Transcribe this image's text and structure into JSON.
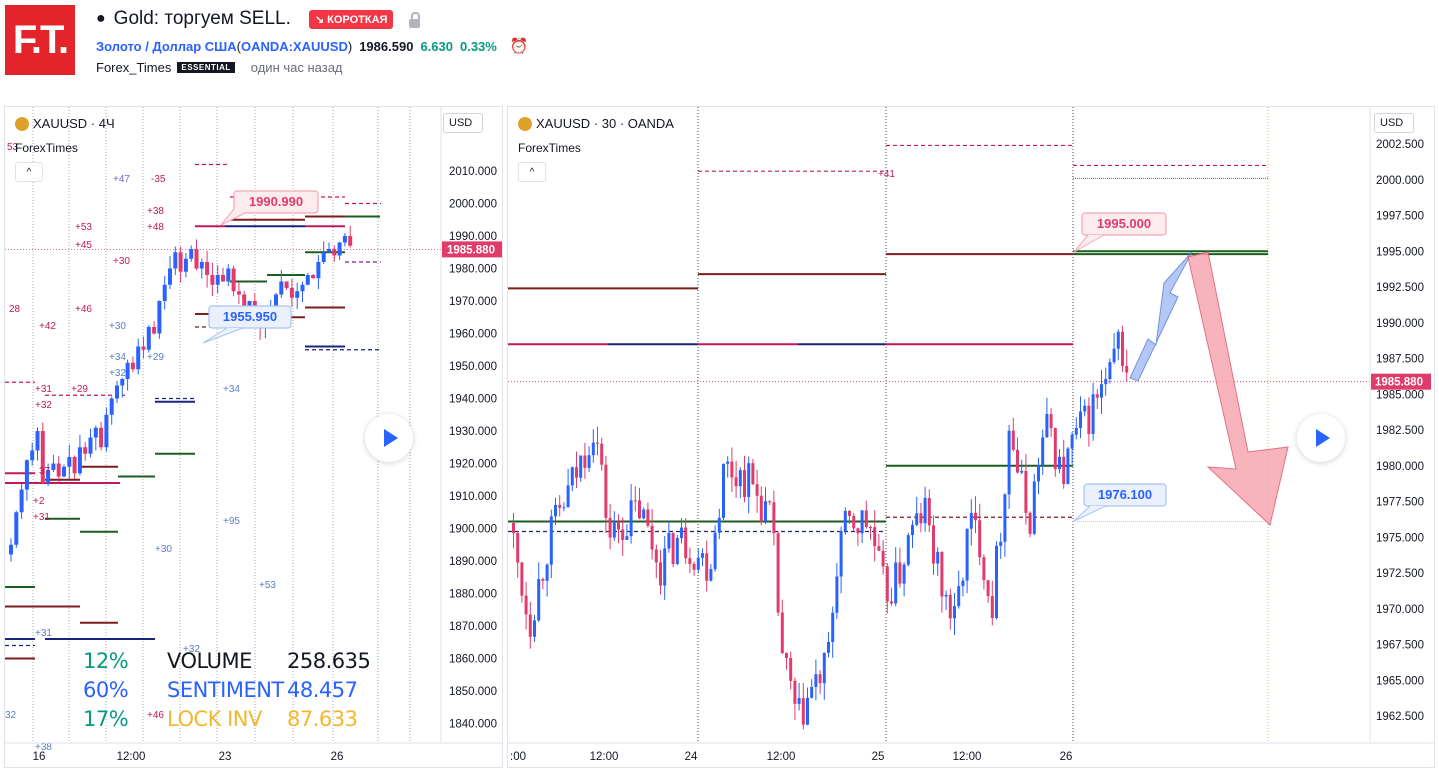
{
  "header": {
    "logo": "F.T.",
    "title": "Gold: торгуем SELL.",
    "badge": "↘ КОРОТКАЯ",
    "symbol": "Золото / Доллар США",
    "symbol_open": "(",
    "exchange_symbol": "OANDA:XAUUSD",
    "symbol_close": ")",
    "price": "1986.590",
    "change": "6.630",
    "change_pct": "0.33%",
    "author": "Forex_Times",
    "plan": "ESSENTIAL",
    "time_ago": "один час назад"
  },
  "left_chart": {
    "title": "XAUUSD · 4Ч",
    "indicator": "ForexTimes",
    "currency": "USD",
    "current_price": "1985.880",
    "y_ticks": [
      "2010.000",
      "2000.000",
      "1990.000",
      "1980.000",
      "1970.000",
      "1960.000",
      "1950.000",
      "1940.000",
      "1930.000",
      "1920.000",
      "1910.000",
      "1900.000",
      "1890.000",
      "1880.000",
      "1870.000",
      "1860.000",
      "1850.000",
      "1840.000"
    ],
    "x_ticks": [
      "16",
      "12:00",
      "23",
      "12:00",
      "26"
    ],
    "label_high": "1990.990",
    "label_low": "1955.950",
    "stats": [
      {
        "pct": "12%",
        "name": "VOLUME",
        "value": "258.635"
      },
      {
        "pct": "60%",
        "name": "SENTIMENT",
        "value": "48.457"
      },
      {
        "pct": "17%",
        "name": "LOCK INV",
        "value": "87.633"
      }
    ],
    "annotations": [
      "53",
      "+47",
      "-35",
      "+38",
      "+53",
      "+48",
      "+45",
      "+30",
      "+46",
      "28",
      "+42",
      "+30",
      "+34",
      "+29",
      "+32",
      "+31",
      "+29",
      "+34",
      "+32",
      "37",
      "+2",
      "+31",
      "+30",
      "+53",
      "+95",
      "+31",
      "+32",
      "+46",
      "32",
      "+38"
    ]
  },
  "right_chart": {
    "title": "XAUUSD · 30 · OANDA",
    "indicator": "ForexTimes",
    "currency": "USD",
    "current_price": "1985.880",
    "y_ticks": [
      "2002.500",
      "2000.000",
      "1997.500",
      "1995.000",
      "1992.500",
      "1990.000",
      "1987.500",
      "1985.000",
      "1982.500",
      "1980.000",
      "1977.500",
      "1975.000",
      "1972.500",
      "1970.000",
      "1967.500",
      "1965.000",
      "1962.500"
    ],
    "x_ticks": [
      ":00",
      "12:00",
      "24",
      "12:00",
      "25",
      "12:00",
      "26"
    ],
    "label_target": "1995.000",
    "label_low": "1976.100",
    "annotation": "+41"
  },
  "colors": {
    "up": "#2962ff",
    "down": "#e03b6a",
    "accent_red": "#f23645",
    "green": "#089981"
  }
}
